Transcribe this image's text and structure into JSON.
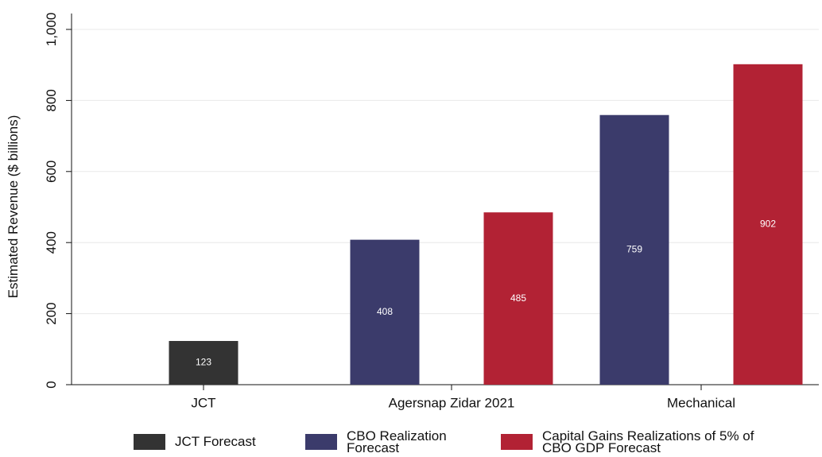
{
  "chart_data": {
    "type": "bar",
    "y_label": "Estimated Revenue ($ billions)",
    "categories": [
      "JCT",
      "Agersnap Zidar 2021",
      "Mechanical"
    ],
    "series": [
      {
        "name": "JCT Forecast",
        "color": "#333333",
        "values": [
          123,
          null,
          null
        ]
      },
      {
        "name": "CBO Realization Forecast",
        "color": "#3b3b6b",
        "values": [
          null,
          408,
          759
        ]
      },
      {
        "name": "Capital Gains Realizations of 5% of CBO GDP Forecast",
        "color": "#b22234",
        "values": [
          null,
          485,
          902
        ]
      }
    ],
    "ylim": [
      0,
      1000
    ],
    "yticks": [
      0,
      200,
      400,
      600,
      800,
      {
        "value": 1000,
        "label": "1,000"
      }
    ],
    "grid": true
  }
}
